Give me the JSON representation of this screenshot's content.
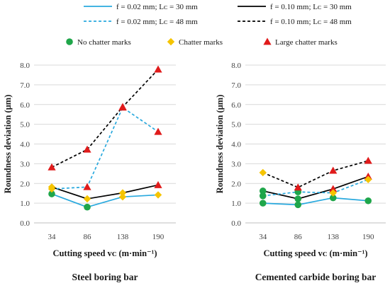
{
  "legend": {
    "series": [
      {
        "key": "s1",
        "label": "f = 0.02 mm; Lᴄ = 30 mm",
        "color": "#29a9de",
        "dash": false
      },
      {
        "key": "s2",
        "label": "f = 0.10 mm; Lᴄ = 30 mm",
        "color": "#000000",
        "dash": false
      },
      {
        "key": "s3",
        "label": "f = 0.02 mm; Lᴄ = 48 mm",
        "color": "#29a9de",
        "dash": true
      },
      {
        "key": "s4",
        "label": "f = 0.10 mm; Lᴄ = 48 mm",
        "color": "#000000",
        "dash": true
      }
    ],
    "markers": [
      {
        "key": "green",
        "label": "No chatter marks",
        "shape": "circle",
        "color": "#1fa64a"
      },
      {
        "key": "yellow",
        "label": "Chatter marks",
        "shape": "diamond",
        "color": "#f5c400"
      },
      {
        "key": "red",
        "label": "Large chatter marks",
        "shape": "triangle",
        "color": "#e01b1b"
      }
    ]
  },
  "colors": {
    "grid": "#d9d9d9",
    "axis": "#bfbfbf"
  },
  "chart_data": [
    {
      "type": "line",
      "caption": "Steel boring bar",
      "xlabel": "Cutting speed vᴄ (m·min⁻¹)",
      "ylabel": "Roundness deviation (μm)",
      "categories": [
        "34",
        "86",
        "138",
        "190"
      ],
      "ylim": [
        0,
        8
      ],
      "yticks": [
        "0.0",
        "1.0",
        "2.0",
        "3.0",
        "4.0",
        "5.0",
        "6.0",
        "7.0",
        "8.0"
      ],
      "grid": true,
      "series": [
        {
          "key": "s1",
          "values": [
            1.47,
            0.8,
            1.32,
            1.42
          ],
          "markers": [
            "green",
            "green",
            "yellow",
            "yellow"
          ]
        },
        {
          "key": "s2",
          "values": [
            1.82,
            1.22,
            1.52,
            1.92
          ],
          "markers": [
            "yellow",
            "yellow",
            "yellow",
            "red"
          ]
        },
        {
          "key": "s3",
          "values": [
            1.72,
            1.82,
            5.85,
            4.62
          ],
          "markers": [
            "yellow",
            "red",
            "red",
            "red"
          ]
        },
        {
          "key": "s4",
          "values": [
            2.82,
            3.72,
            5.88,
            7.78
          ],
          "markers": [
            "red",
            "red",
            "red",
            "red"
          ]
        }
      ]
    },
    {
      "type": "line",
      "caption": "Cemented carbide boring bar",
      "xlabel": "Cutting speed vᴄ (m·min⁻¹)",
      "ylabel": "Roundness deviation (μm)",
      "categories": [
        "34",
        "86",
        "138",
        "190"
      ],
      "ylim": [
        0,
        8
      ],
      "yticks": [
        "0.0",
        "1.0",
        "2.0",
        "3.0",
        "4.0",
        "5.0",
        "6.0",
        "7.0",
        "8.0"
      ],
      "grid": true,
      "series": [
        {
          "key": "s1",
          "values": [
            1.0,
            0.92,
            1.27,
            1.12
          ],
          "markers": [
            "green",
            "green",
            "green",
            "green"
          ]
        },
        {
          "key": "s2",
          "values": [
            1.62,
            1.22,
            1.72,
            2.35
          ],
          "markers": [
            "green",
            "green",
            "red",
            "red"
          ]
        },
        {
          "key": "s3",
          "values": [
            1.37,
            1.57,
            1.52,
            2.2
          ],
          "markers": [
            "green",
            "green",
            "yellow",
            "yellow"
          ]
        },
        {
          "key": "s4",
          "values": [
            2.55,
            1.8,
            2.65,
            3.15
          ],
          "markers": [
            "yellow",
            "red",
            "red",
            "red"
          ]
        }
      ]
    }
  ]
}
